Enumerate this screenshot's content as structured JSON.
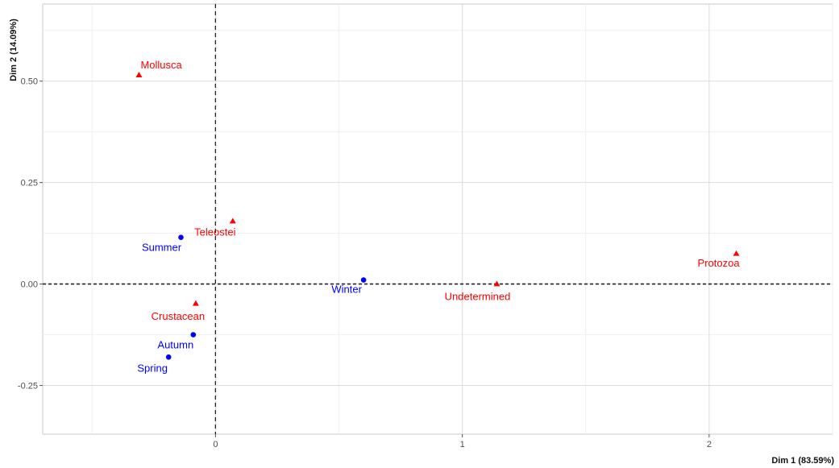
{
  "chart_data": {
    "type": "scatter",
    "xlabel": "Dim 1 (83.59%)",
    "ylabel": "Dim 2 (14.09%)",
    "xlim": [
      -0.7,
      2.5
    ],
    "ylim": [
      -0.37,
      0.69
    ],
    "x_ticks": [
      0,
      1,
      2
    ],
    "x_tick_labels": [
      "0",
      "1",
      "2"
    ],
    "y_ticks": [
      -0.25,
      0,
      0.25,
      0.5
    ],
    "y_tick_labels": [
      "-0.25",
      "0.00",
      "0.25",
      "0.50"
    ],
    "grid": true,
    "reference_lines": {
      "x": 0,
      "y": 0,
      "style": "dashed"
    },
    "series": [
      {
        "shape": "circle",
        "color": "#0000ff",
        "points": [
          {
            "label": "Summer",
            "x": -0.14,
            "y": 0.115
          },
          {
            "label": "Winter",
            "x": 0.6,
            "y": 0.01
          },
          {
            "label": "Autumn",
            "x": -0.09,
            "y": -0.125
          },
          {
            "label": "Spring",
            "x": -0.19,
            "y": -0.18
          }
        ]
      },
      {
        "shape": "triangle",
        "color": "#ff0000",
        "points": [
          {
            "label": "Mollusca",
            "x": -0.31,
            "y": 0.515
          },
          {
            "label": "Teleostei",
            "x": 0.07,
            "y": 0.155
          },
          {
            "label": "Protozoa",
            "x": 2.11,
            "y": 0.075
          },
          {
            "label": "Undetermined",
            "x": 1.14,
            "y": 0.0
          },
          {
            "label": "Crustacean",
            "x": -0.08,
            "y": -0.048
          }
        ]
      }
    ]
  }
}
